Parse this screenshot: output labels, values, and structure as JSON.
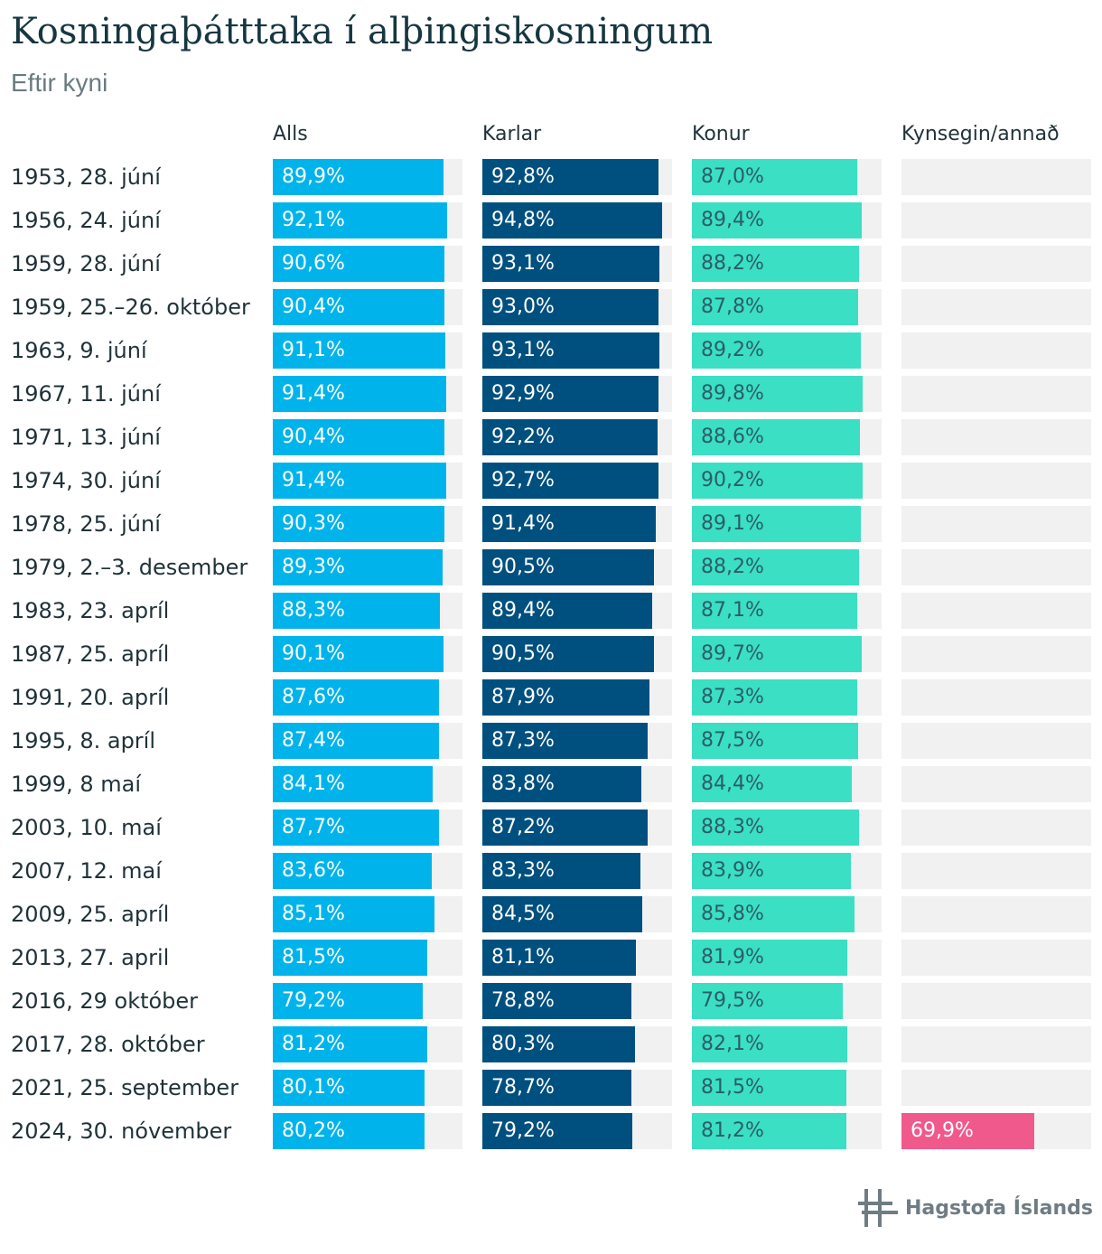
{
  "header": {
    "title": "Kosningaþátttaka í alþingiskosningum",
    "subtitle": "Eftir kyni"
  },
  "footer": {
    "logo_text": "Hagstofa Íslands"
  },
  "colors": {
    "Alls": "#00b4eb",
    "Karlar": "#00507f",
    "Konur": "#3bdfc3",
    "Kynsegin/annað": "#f0598c",
    "track": "#f1f1f2"
  },
  "chart_data": {
    "type": "bar",
    "title": "Kosningaþátttaka í alþingiskosningum",
    "subtitle": "Eftir kyni",
    "unit": "%",
    "xlim": [
      0,
      100
    ],
    "grid": false,
    "categories": [
      "1953, 28. júní",
      "1956, 24. júní",
      "1959, 28. júní",
      "1959, 25.–26. október",
      "1963, 9. júní",
      "1967, 11. júní",
      "1971, 13. júní",
      "1974, 30. júní",
      "1978, 25. júní",
      "1979, 2.–3. desember",
      "1983, 23. apríl",
      "1987, 25. apríl",
      "1991, 20. apríl",
      "1995, 8. apríl",
      "1999, 8 maí",
      "2003, 10. maí",
      "2007, 12. maí",
      "2009, 25. apríl",
      "2013, 27. april",
      "2016, 29 október",
      "2017, 28. október",
      "2021, 25. september",
      "2024, 30. nóvember"
    ],
    "series": [
      {
        "name": "Alls",
        "values": [
          89.9,
          92.1,
          90.6,
          90.4,
          91.1,
          91.4,
          90.4,
          91.4,
          90.3,
          89.3,
          88.3,
          90.1,
          87.6,
          87.4,
          84.1,
          87.7,
          83.6,
          85.1,
          81.5,
          79.2,
          81.2,
          80.1,
          80.2
        ],
        "labels": [
          "89,9%",
          "92,1%",
          "90,6%",
          "90,4%",
          "91,1%",
          "91,4%",
          "90,4%",
          "91,4%",
          "90,3%",
          "89,3%",
          "88,3%",
          "90,1%",
          "87,6%",
          "87,4%",
          "84,1%",
          "87,7%",
          "83,6%",
          "85,1%",
          "81,5%",
          "79,2%",
          "81,2%",
          "80,1%",
          "80,2%"
        ]
      },
      {
        "name": "Karlar",
        "values": [
          92.8,
          94.8,
          93.1,
          93.0,
          93.1,
          92.9,
          92.2,
          92.7,
          91.4,
          90.5,
          89.4,
          90.5,
          87.9,
          87.3,
          83.8,
          87.2,
          83.3,
          84.5,
          81.1,
          78.8,
          80.3,
          78.7,
          79.2
        ],
        "labels": [
          "92,8%",
          "94,8%",
          "93,1%",
          "93,0%",
          "93,1%",
          "92,9%",
          "92,2%",
          "92,7%",
          "91,4%",
          "90,5%",
          "89,4%",
          "90,5%",
          "87,9%",
          "87,3%",
          "83,8%",
          "87,2%",
          "83,3%",
          "84,5%",
          "81,1%",
          "78,8%",
          "80,3%",
          "78,7%",
          "79,2%"
        ]
      },
      {
        "name": "Konur",
        "values": [
          87.0,
          89.4,
          88.2,
          87.8,
          89.2,
          89.8,
          88.6,
          90.2,
          89.1,
          88.2,
          87.1,
          89.7,
          87.3,
          87.5,
          84.4,
          88.3,
          83.9,
          85.8,
          81.9,
          79.5,
          82.1,
          81.5,
          81.2
        ],
        "labels": [
          "87,0%",
          "89,4%",
          "88,2%",
          "87,8%",
          "89,2%",
          "89,8%",
          "88,6%",
          "90,2%",
          "89,1%",
          "88,2%",
          "87,1%",
          "89,7%",
          "87,3%",
          "87,5%",
          "84,4%",
          "88,3%",
          "83,9%",
          "85,8%",
          "81,9%",
          "79,5%",
          "82,1%",
          "81,5%",
          "81,2%"
        ]
      },
      {
        "name": "Kynsegin/annað",
        "values": [
          null,
          null,
          null,
          null,
          null,
          null,
          null,
          null,
          null,
          null,
          null,
          null,
          null,
          null,
          null,
          null,
          null,
          null,
          null,
          null,
          null,
          null,
          69.9
        ],
        "labels": [
          "",
          "",
          "",
          "",
          "",
          "",
          "",
          "",
          "",
          "",
          "",
          "",
          "",
          "",
          "",
          "",
          "",
          "",
          "",
          "",
          "",
          "",
          "69,9%"
        ]
      }
    ]
  }
}
